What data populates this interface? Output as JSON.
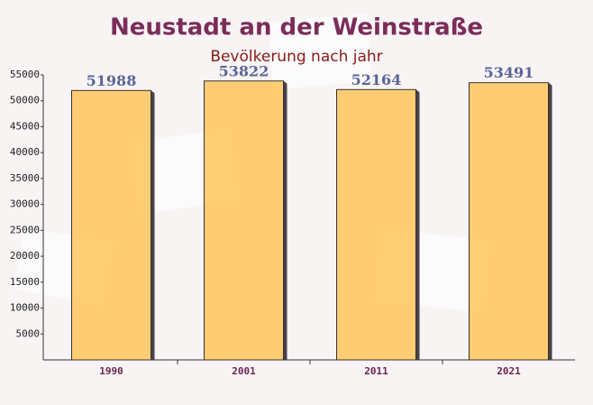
{
  "chart_data": {
    "type": "bar",
    "title": "Neustadt an der Weinstraße",
    "subtitle": "Bevölkerung nach jahr",
    "categories": [
      "1990",
      "2001",
      "2011",
      "2021"
    ],
    "values": [
      51988,
      53822,
      52164,
      53491
    ],
    "color": "#ffc865",
    "ylim": [
      0,
      55000
    ],
    "yticks": [
      5000,
      10000,
      15000,
      20000,
      25000,
      30000,
      35000,
      40000,
      45000,
      50000,
      55000
    ]
  }
}
